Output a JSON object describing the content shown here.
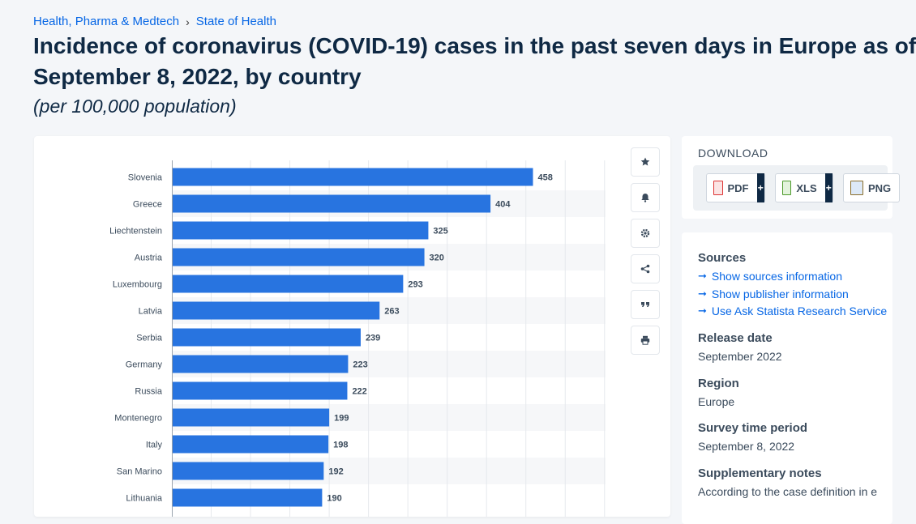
{
  "breadcrumb": {
    "item1": "Health, Pharma & Medtech",
    "item2": "State of Health",
    "separator": "›"
  },
  "title": {
    "line1": "Incidence of coronavirus (COVID-19) cases in the past seven days in Europe as of",
    "line2": "September 8, 2022, by country"
  },
  "subtitle": "(per 100,000 population)",
  "colors": {
    "bar": "#2874e0",
    "accent": "#0666e5",
    "dark": "#0f2944"
  },
  "toolbar": {
    "icons": [
      "star-icon",
      "bell-icon",
      "gear-icon",
      "share-icon",
      "quote-icon",
      "print-icon"
    ]
  },
  "download": {
    "title": "DOWNLOAD",
    "buttons": [
      {
        "label": "PDF",
        "plus": "+"
      },
      {
        "label": "XLS",
        "plus": "+"
      },
      {
        "label": "PNG"
      }
    ]
  },
  "info": {
    "sources_heading": "Sources",
    "links": [
      "Show sources information",
      "Show publisher information",
      "Use Ask Statista Research Service"
    ],
    "release_heading": "Release date",
    "release_value": "September 2022",
    "region_heading": "Region",
    "region_value": "Europe",
    "survey_heading": "Survey time period",
    "survey_value": "September 8, 2022",
    "notes_heading": "Supplementary notes",
    "notes_value": "According to the case definition in e"
  },
  "chart_data": {
    "type": "bar",
    "orientation": "horizontal",
    "categories": [
      "Slovenia",
      "Greece",
      "Liechtenstein",
      "Austria",
      "Luxembourg",
      "Latvia",
      "Serbia",
      "Germany",
      "Russia",
      "Montenegro",
      "Italy",
      "San Marino",
      "Lithuania"
    ],
    "values": [
      458,
      404,
      325,
      320,
      293,
      263,
      239,
      223,
      222,
      199,
      198,
      192,
      190
    ],
    "data_labels": [
      "458",
      "404",
      "325",
      "320",
      "293",
      "263",
      "239",
      "223",
      "222",
      "199",
      "198",
      "192",
      "190"
    ],
    "xlim": [
      0,
      550
    ],
    "grid": true
  }
}
